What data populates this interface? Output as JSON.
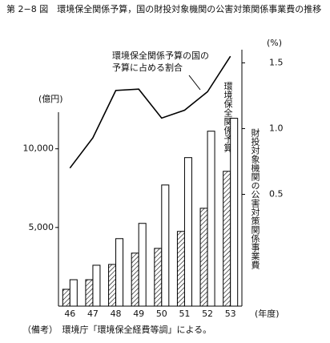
{
  "chart_data": {
    "type": "bar",
    "title": "第 2−8 図　環境保全関係予算，国の財投対象機関の公害対策関係事業費の推移",
    "categories": [
      "46",
      "47",
      "48",
      "49",
      "50",
      "51",
      "52",
      "53"
    ],
    "series": [
      {
        "name": "環境保全関係予算",
        "color": "#000000",
        "pattern": "hatch",
        "values": [
          1070,
          1680,
          2650,
          3370,
          3670,
          4750,
          6220,
          8570
        ]
      },
      {
        "name": "財投対象機関の公害対策関係事業費",
        "color": "#ffffff",
        "values": [
          1680,
          2600,
          4290,
          5260,
          7700,
          9440,
          11120,
          11940
        ]
      },
      {
        "name": "環境保全関係予算の国の予算に占める割合",
        "type": "line",
        "axis": "y2",
        "color": "#000000",
        "values": [
          0.7,
          0.93,
          1.29,
          1.3,
          1.08,
          1.14,
          1.28,
          1.55
        ]
      }
    ],
    "ylim": [
      0,
      16300
    ],
    "yticks": [
      {
        "value": 5000,
        "label": "5,000"
      },
      {
        "value": 10000,
        "label": "10,000"
      }
    ],
    "y2lim": [
      -0.35,
      1.6
    ],
    "y2ticks": [
      0.5,
      {
        "value": 1,
        "label": "1.0"
      },
      1.5
    ],
    "y_unit": "(億円)",
    "y2_unit": "(%)",
    "x_unit": "(年度)",
    "note": "（備考）　環境庁「環境保全経費等調」による。"
  }
}
